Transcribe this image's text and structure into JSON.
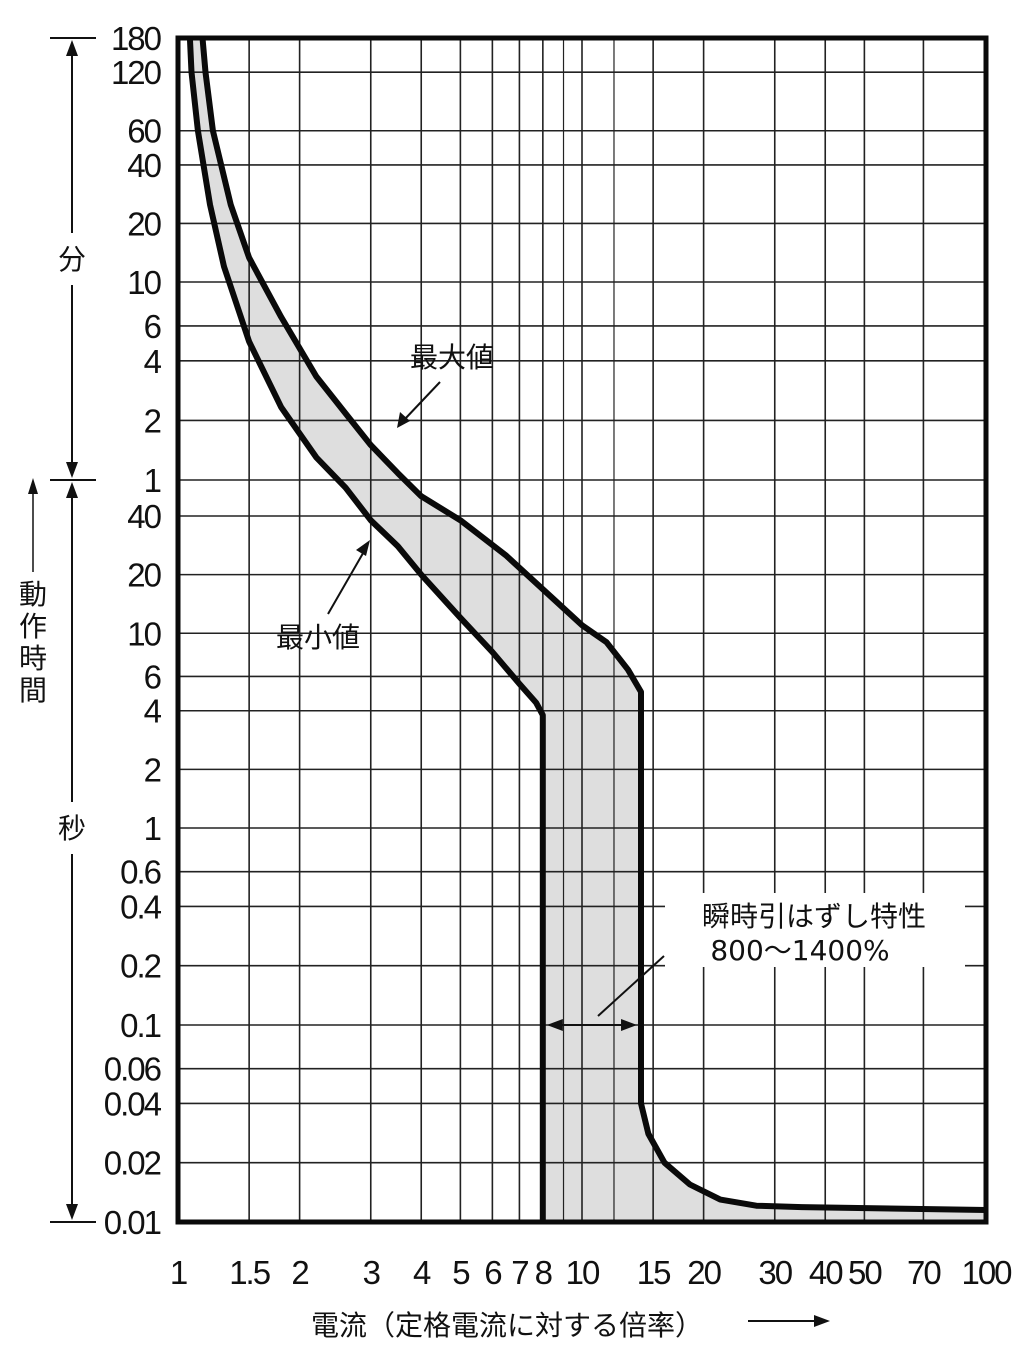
{
  "chart_data": {
    "type": "line",
    "title": "",
    "xlabel": "電流（定格電流に対する倍率）",
    "ylabel": "動作時間",
    "x_scale": "log",
    "y_scale": "log",
    "xlim": [
      1,
      100
    ],
    "ylim_seconds": [
      0.01,
      10800
    ],
    "x_ticks": [
      {
        "value": 1,
        "label": "1"
      },
      {
        "value": 1.5,
        "label": "1.5"
      },
      {
        "value": 2,
        "label": "2"
      },
      {
        "value": 3,
        "label": "3"
      },
      {
        "value": 4,
        "label": "4"
      },
      {
        "value": 5,
        "label": "5"
      },
      {
        "value": 6,
        "label": "6"
      },
      {
        "value": 7,
        "label": "7"
      },
      {
        "value": 8,
        "label": "8"
      },
      {
        "value": 10,
        "label": "10"
      },
      {
        "value": 15,
        "label": "15"
      },
      {
        "value": 20,
        "label": "20"
      },
      {
        "value": 30,
        "label": "30"
      },
      {
        "value": 40,
        "label": "40"
      },
      {
        "value": 50,
        "label": "50"
      },
      {
        "value": 70,
        "label": "70"
      },
      {
        "value": 100,
        "label": "100"
      }
    ],
    "x_minor_grid": [
      9,
      12
    ],
    "y_ticks": [
      {
        "seconds": 0.01,
        "label": "0.01"
      },
      {
        "seconds": 0.02,
        "label": "0.02"
      },
      {
        "seconds": 0.04,
        "label": "0.04"
      },
      {
        "seconds": 0.06,
        "label": "0.06"
      },
      {
        "seconds": 0.1,
        "label": "0.1"
      },
      {
        "seconds": 0.2,
        "label": "0.2"
      },
      {
        "seconds": 0.4,
        "label": "0.4"
      },
      {
        "seconds": 0.6,
        "label": "0.6"
      },
      {
        "seconds": 1,
        "label": "1"
      },
      {
        "seconds": 2,
        "label": "2"
      },
      {
        "seconds": 4,
        "label": "4"
      },
      {
        "seconds": 6,
        "label": "6"
      },
      {
        "seconds": 10,
        "label": "10"
      },
      {
        "seconds": 20,
        "label": "20"
      },
      {
        "seconds": 40,
        "label": "40"
      },
      {
        "seconds": 60,
        "label": "1"
      },
      {
        "seconds": 120,
        "label": "2"
      },
      {
        "seconds": 240,
        "label": "4"
      },
      {
        "seconds": 360,
        "label": "6"
      },
      {
        "seconds": 600,
        "label": "10"
      },
      {
        "seconds": 1200,
        "label": "20"
      },
      {
        "seconds": 2400,
        "label": "40"
      },
      {
        "seconds": 3600,
        "label": "60"
      },
      {
        "seconds": 7200,
        "label": "120"
      },
      {
        "seconds": 10800,
        "label": "180"
      }
    ],
    "unit_labels": {
      "minutes": "分",
      "seconds": "秒"
    },
    "series": [
      {
        "name": "最大値",
        "points": [
          {
            "x": 1.15,
            "y": 10800
          },
          {
            "x": 1.17,
            "y": 7200
          },
          {
            "x": 1.22,
            "y": 3600
          },
          {
            "x": 1.35,
            "y": 1500
          },
          {
            "x": 1.5,
            "y": 800
          },
          {
            "x": 1.8,
            "y": 400
          },
          {
            "x": 2.2,
            "y": 200
          },
          {
            "x": 2.6,
            "y": 130
          },
          {
            "x": 3,
            "y": 90
          },
          {
            "x": 3.5,
            "y": 65
          },
          {
            "x": 4,
            "y": 50
          },
          {
            "x": 5,
            "y": 38
          },
          {
            "x": 6.5,
            "y": 25
          },
          {
            "x": 8.5,
            "y": 15
          },
          {
            "x": 10,
            "y": 11
          },
          {
            "x": 11.5,
            "y": 9
          },
          {
            "x": 13,
            "y": 6.5
          },
          {
            "x": 14,
            "y": 5
          },
          {
            "x": 14,
            "y": 0.04
          },
          {
            "x": 14.6,
            "y": 0.028
          },
          {
            "x": 16,
            "y": 0.02
          },
          {
            "x": 18.5,
            "y": 0.0155
          },
          {
            "x": 22,
            "y": 0.013
          },
          {
            "x": 27,
            "y": 0.0121
          },
          {
            "x": 35,
            "y": 0.0119
          },
          {
            "x": 100,
            "y": 0.0115
          }
        ]
      },
      {
        "name": "最小値",
        "points": [
          {
            "x": 1.07,
            "y": 10800
          },
          {
            "x": 1.08,
            "y": 7200
          },
          {
            "x": 1.12,
            "y": 3600
          },
          {
            "x": 1.2,
            "y": 1500
          },
          {
            "x": 1.3,
            "y": 720
          },
          {
            "x": 1.5,
            "y": 300
          },
          {
            "x": 1.8,
            "y": 140
          },
          {
            "x": 2.2,
            "y": 78
          },
          {
            "x": 2.6,
            "y": 55
          },
          {
            "x": 3,
            "y": 38
          },
          {
            "x": 3.5,
            "y": 28
          },
          {
            "x": 4,
            "y": 20
          },
          {
            "x": 5,
            "y": 12
          },
          {
            "x": 6,
            "y": 8
          },
          {
            "x": 7,
            "y": 5.5
          },
          {
            "x": 7.7,
            "y": 4.4
          },
          {
            "x": 8,
            "y": 3.8
          },
          {
            "x": 8,
            "y": 0.01
          }
        ]
      }
    ],
    "annotations": [
      {
        "text": "最大値",
        "target_series": "最大値",
        "point": {
          "x": 3,
          "y": 50
        }
      },
      {
        "text": "最小値",
        "target_series": "最小値",
        "point": {
          "x": 3,
          "y": 30
        }
      },
      {
        "text": "瞬時引はずし特性",
        "subtext": "800〜1400%",
        "range_x": [
          8,
          14
        ],
        "at_y": 0.1
      }
    ],
    "grid": true,
    "legend": "none"
  }
}
